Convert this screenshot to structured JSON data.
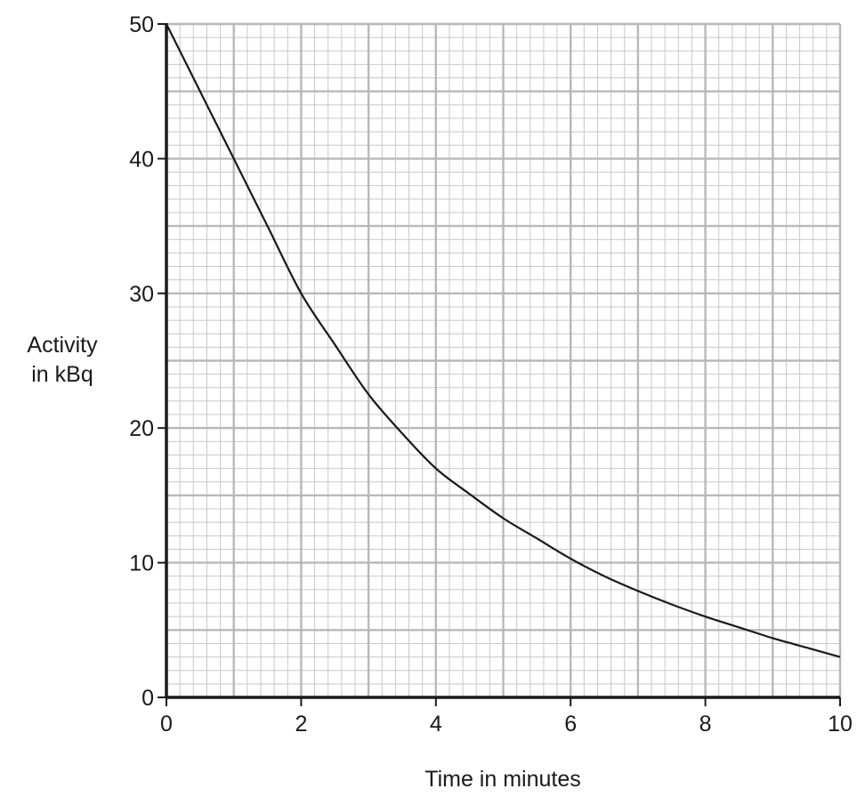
{
  "chart_data": {
    "type": "line",
    "xlabel": "Time in minutes",
    "ylabel_lines": [
      "Activity",
      "in kBq"
    ],
    "xlim": [
      0,
      10
    ],
    "ylim": [
      0,
      50
    ],
    "x_ticks": [
      0,
      2,
      4,
      6,
      8,
      10
    ],
    "y_ticks": [
      0,
      10,
      20,
      30,
      40,
      50
    ],
    "grid": true,
    "series": [
      {
        "x": [
          0,
          0.5,
          1,
          1.5,
          2,
          2.5,
          3,
          3.5,
          4,
          4.5,
          5,
          5.5,
          6,
          6.5,
          7,
          7.5,
          8,
          8.5,
          9,
          9.5,
          10
        ],
        "y": [
          50,
          45,
          40,
          35,
          30,
          26.2,
          22.5,
          19.6,
          17,
          15.1,
          13.3,
          11.8,
          10.3,
          9,
          7.9,
          6.9,
          6,
          5.2,
          4.4,
          3.7,
          3
        ],
        "color": "#1a1a1a"
      }
    ]
  }
}
